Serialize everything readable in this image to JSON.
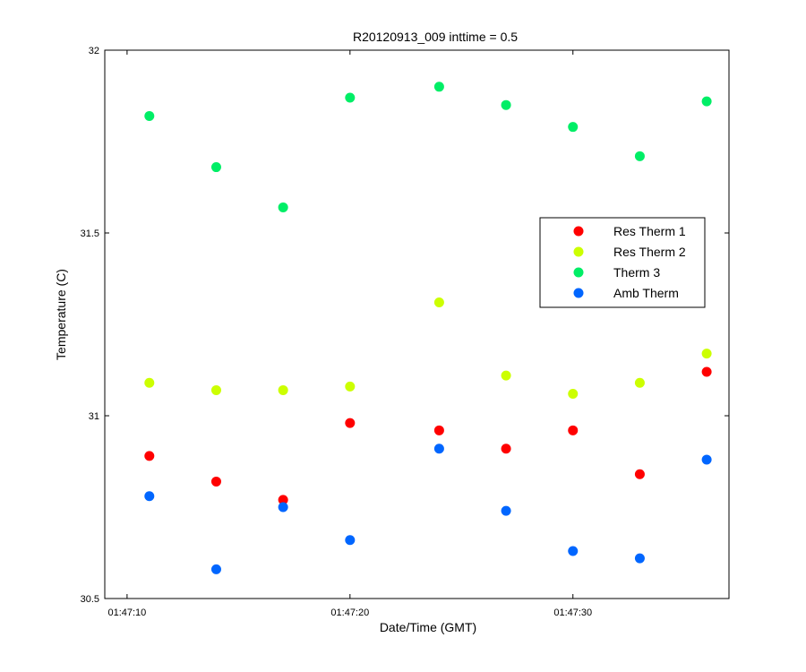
{
  "chart_data": {
    "type": "scatter",
    "title": "R20120913_009 inttime = 0.5",
    "xlabel": "Date/Time (GMT)",
    "ylabel": "Temperature (C)",
    "x_ticks": [
      "01:47:10",
      "01:47:20",
      "01:47:30"
    ],
    "y_ticks": [
      "30.5",
      "31",
      "31.5",
      "32"
    ],
    "xlim": [
      "01:47:09",
      "01:47:37"
    ],
    "ylim": [
      30.5,
      32
    ],
    "x": [
      "01:47:11",
      "01:47:14",
      "01:47:17",
      "01:47:20",
      "01:47:24",
      "01:47:27",
      "01:47:30",
      "01:47:33",
      "01:47:36"
    ],
    "series": [
      {
        "name": "Res Therm 1",
        "color": "#ff0000",
        "values": [
          30.89,
          30.82,
          30.77,
          30.98,
          30.96,
          30.91,
          30.96,
          30.84,
          31.12
        ]
      },
      {
        "name": "Res Therm 2",
        "color": "#ccff00",
        "values": [
          31.09,
          31.07,
          31.07,
          31.08,
          31.31,
          31.11,
          31.06,
          31.09,
          31.17
        ]
      },
      {
        "name": "Therm 3",
        "color": "#00ee66",
        "values": [
          31.82,
          31.68,
          31.57,
          31.87,
          31.9,
          31.85,
          31.79,
          31.71,
          31.86
        ]
      },
      {
        "name": "Amb Therm",
        "color": "#0066ff",
        "values": [
          30.78,
          30.58,
          30.75,
          30.66,
          30.91,
          30.74,
          30.63,
          30.61,
          30.88
        ]
      }
    ],
    "legend_position": "right-center",
    "grid": false
  }
}
